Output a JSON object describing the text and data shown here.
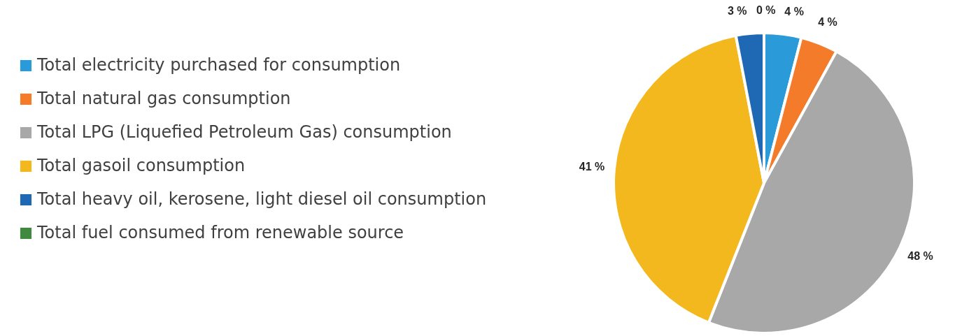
{
  "chart_data": {
    "type": "pie",
    "categories": [
      "Total electricity purchased for consumption",
      "Total natural gas consumption",
      "Total LPG (Liquefied Petroleum Gas) consumption",
      "Total gasoil consumption",
      "Total heavy oil, kerosene, light diesel oil consumption",
      "Total fuel consumed from renewable source"
    ],
    "values": [
      4,
      4,
      48,
      41,
      3,
      0
    ],
    "colors": [
      "#2a9ad8",
      "#f47b2a",
      "#a8a8a8",
      "#f4b81f",
      "#1f68b4",
      "#3f8a3f"
    ],
    "value_labels": [
      "4 %",
      "4 %",
      "48 %",
      "41 %",
      "3 %",
      "0 %"
    ],
    "legend": "left"
  }
}
